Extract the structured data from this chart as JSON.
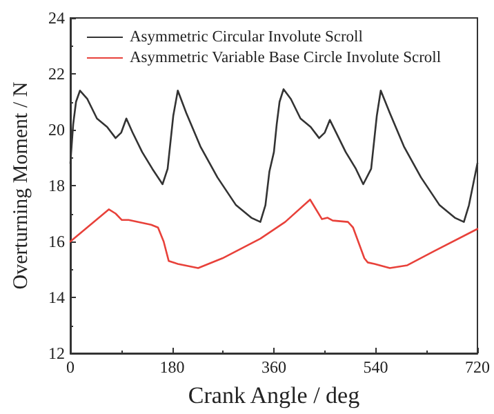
{
  "chart_data": {
    "type": "line",
    "xlabel": "Crank Angle / deg",
    "ylabel": "Overturning Moment / N",
    "xlim": [
      0,
      720
    ],
    "xticks": [
      0,
      180,
      360,
      540,
      720
    ],
    "ylim": [
      12,
      24
    ],
    "yticks": [
      12,
      14,
      16,
      18,
      20,
      22,
      24
    ],
    "grid": false,
    "legend": "top left",
    "marker": "none",
    "line_style": "solid",
    "series": [
      {
        "name": "Asymmetric Circular Involute Scroll",
        "color": "#333333",
        "x": [
          0,
          5,
          10,
          17,
          30,
          47,
          65,
          80,
          90,
          99,
          110,
          127,
          145,
          163,
          172,
          182,
          190,
          205,
          230,
          260,
          293,
          320,
          336,
          345,
          352,
          360,
          365,
          370,
          377,
          390,
          407,
          425,
          440,
          450,
          459,
          470,
          487,
          505,
          518,
          532,
          542,
          549,
          565,
          590,
          620,
          653,
          680,
          696,
          705,
          712,
          720
        ],
        "values": [
          18.8,
          20.2,
          21.0,
          21.4,
          21.1,
          20.4,
          20.1,
          19.7,
          19.9,
          20.4,
          19.9,
          19.2,
          18.6,
          18.05,
          18.6,
          20.5,
          21.4,
          20.6,
          19.4,
          18.3,
          17.3,
          16.85,
          16.7,
          17.3,
          18.5,
          19.2,
          20.2,
          21.0,
          21.45,
          21.1,
          20.4,
          20.1,
          19.7,
          19.9,
          20.35,
          19.9,
          19.2,
          18.6,
          18.05,
          18.6,
          20.5,
          21.4,
          20.6,
          19.4,
          18.3,
          17.3,
          16.85,
          16.7,
          17.3,
          18.0,
          18.8
        ]
      },
      {
        "name": "Asymmetric Variable Base Circle Involute Scroll",
        "color": "#e8413a",
        "x": [
          0,
          68,
          80,
          91,
          103,
          143,
          155,
          165,
          174,
          190,
          226,
          269,
          336,
          380,
          424,
          445,
          455,
          464,
          491,
          500,
          520,
          526,
          538,
          565,
          596,
          643,
          720
        ],
        "values": [
          16.0,
          17.15,
          17.0,
          16.77,
          16.77,
          16.6,
          16.5,
          16.0,
          15.3,
          15.2,
          15.05,
          15.4,
          16.1,
          16.7,
          17.5,
          16.8,
          16.85,
          16.75,
          16.7,
          16.5,
          15.4,
          15.25,
          15.2,
          15.05,
          15.15,
          15.65,
          16.45
        ]
      }
    ]
  }
}
